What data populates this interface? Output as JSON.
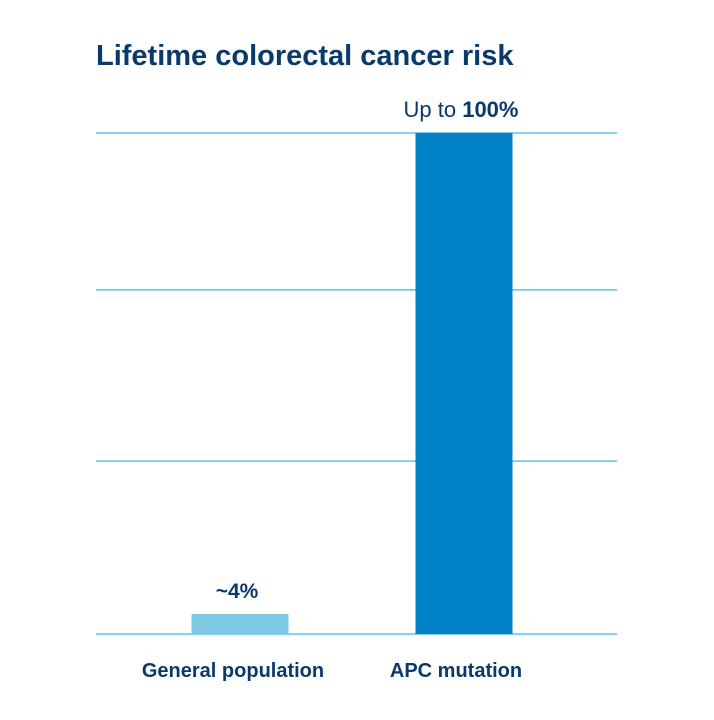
{
  "chart_data": {
    "type": "bar",
    "title": "Lifetime colorectal cancer risk",
    "categories": [
      "General population",
      "APC mutation"
    ],
    "values": [
      4,
      100
    ],
    "data_labels": [
      {
        "prefix": "",
        "value_text": "~4%"
      },
      {
        "prefix": "Up to ",
        "value_text": "100%"
      }
    ],
    "ylim": [
      0,
      100
    ],
    "grid": true,
    "colors": {
      "bars": [
        "#7ec8e3",
        "#0081c6"
      ],
      "grid": "#5cc3ea",
      "title": "#0a3a6b",
      "label": "#0a3a6b"
    }
  }
}
